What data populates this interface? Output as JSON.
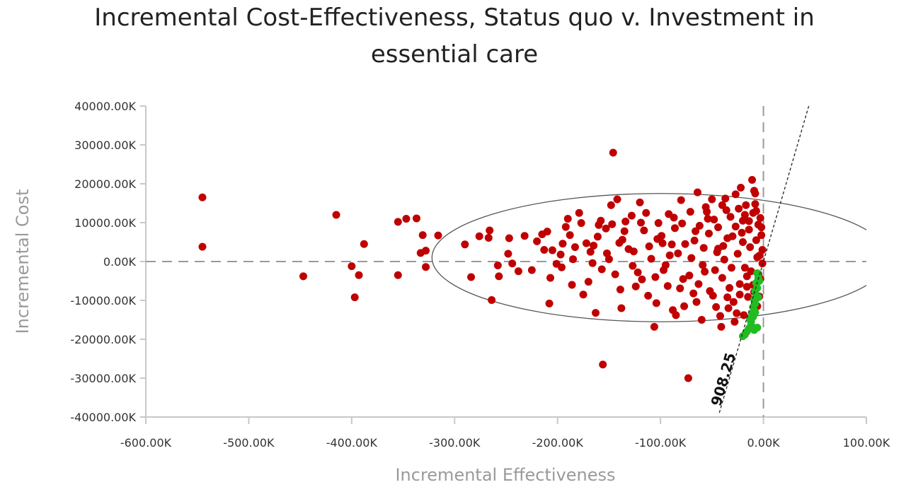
{
  "chart_data": {
    "type": "scatter",
    "title_lines": [
      "Incremental Cost-Effectiveness, Status quo v. Investment in",
      "essential care"
    ],
    "xlabel": "Incremental Effectiveness",
    "ylabel": "Incremental Cost",
    "x_unit": "K",
    "y_unit": "K",
    "xlim": [
      -600,
      100
    ],
    "ylim": [
      -40000,
      40000
    ],
    "x_ticks": [
      -600,
      -500,
      -400,
      -300,
      -200,
      -100,
      0,
      100
    ],
    "y_ticks": [
      -40000,
      -30000,
      -20000,
      -10000,
      0,
      10000,
      20000,
      30000,
      40000
    ],
    "x_tick_labels": [
      "-600.00K",
      "-500.00K",
      "-400.00K",
      "-300.00K",
      "-200.00K",
      "-100.00K",
      "0.00K",
      "100.00K"
    ],
    "y_tick_labels": [
      "-40000.00K",
      "-30000.00K",
      "-20000.00K",
      "-10000.00K",
      "0.00K",
      "10000.00K",
      "20000.00K",
      "30000.00K",
      "40000.00K"
    ],
    "wtp_label": "908.25",
    "wtp_slope": 908.25,
    "ellipse": {
      "center": [
        -100,
        1000
      ],
      "radius_x": 222,
      "radius_y": 16500
    },
    "colors": {
      "dominated": "#c00000",
      "cost_effective": "#22bb22",
      "ellipse": "#555555",
      "wtp_line": "#222222",
      "origin_lines": "#999999"
    },
    "series": [
      {
        "points": [
          [
            -545,
            16500
          ],
          [
            -545,
            3800
          ],
          [
            -447,
            -3800
          ],
          [
            -415,
            12000
          ],
          [
            -400,
            -1200
          ],
          [
            -397,
            -9200
          ],
          [
            -393,
            -3500
          ],
          [
            -388,
            4500
          ],
          [
            -355,
            10200
          ],
          [
            -347,
            11000
          ],
          [
            -337,
            11100
          ],
          [
            -331,
            6800
          ],
          [
            -333,
            2200
          ],
          [
            -328,
            2800
          ],
          [
            -328,
            -1400
          ],
          [
            -355,
            -3500
          ],
          [
            -316,
            6700
          ],
          [
            -290,
            4400
          ],
          [
            -284,
            -4000
          ],
          [
            -276,
            6500
          ],
          [
            -266,
            8000
          ],
          [
            -267,
            6100
          ],
          [
            -264,
            -9900
          ],
          [
            -257,
            -3800
          ],
          [
            -258,
            -1000
          ],
          [
            -247,
            6000
          ],
          [
            -248,
            2000
          ],
          [
            -244,
            -500
          ],
          [
            -238,
            -2500
          ],
          [
            -232,
            6600
          ],
          [
            -225,
            -2200
          ],
          [
            -213,
            3000
          ],
          [
            -210,
            7700
          ],
          [
            -207,
            -4200
          ],
          [
            -208,
            -10800
          ],
          [
            -197,
            1800
          ],
          [
            -196,
            -1500
          ],
          [
            -190,
            11000
          ],
          [
            -188,
            6800
          ],
          [
            -186,
            -6000
          ],
          [
            -179,
            12500
          ],
          [
            -172,
            4700
          ],
          [
            -168,
            2500
          ],
          [
            -166,
            -400
          ],
          [
            -163,
            -13200
          ],
          [
            -158,
            10500
          ],
          [
            -157,
            -2000
          ],
          [
            -156,
            -26500
          ],
          [
            -153,
            8500
          ],
          [
            -146,
            28000
          ],
          [
            -148,
            14500
          ],
          [
            -142,
            16000
          ],
          [
            -140,
            4800
          ],
          [
            -139,
            -7200
          ],
          [
            -138,
            -12000
          ],
          [
            -135,
            7800
          ],
          [
            -128,
            11800
          ],
          [
            -126,
            2600
          ],
          [
            -122,
            -2800
          ],
          [
            -114,
            12500
          ],
          [
            -112,
            -8800
          ],
          [
            -106,
            -16800
          ],
          [
            -104,
            -10700
          ],
          [
            -103,
            5800
          ],
          [
            -97,
            -2200
          ],
          [
            -92,
            12200
          ],
          [
            -86,
            8600
          ],
          [
            -88,
            -12500
          ],
          [
            -80,
            15800
          ],
          [
            -78,
            -4500
          ],
          [
            -77,
            -11500
          ],
          [
            -73,
            -30000
          ],
          [
            -71,
            12800
          ],
          [
            -68,
            -8200
          ],
          [
            -64,
            17800
          ],
          [
            -62,
            9200
          ],
          [
            -60,
            -15000
          ],
          [
            -58,
            3500
          ],
          [
            -55,
            12800
          ],
          [
            -52,
            -7600
          ],
          [
            -50,
            16000
          ],
          [
            -47,
            -2200
          ],
          [
            -44,
            8800
          ],
          [
            -42,
            -14000
          ],
          [
            -41,
            -16800
          ],
          [
            -40,
            14500
          ],
          [
            -39,
            4000
          ],
          [
            -36,
            13200
          ],
          [
            -35,
            -9200
          ],
          [
            -34,
            -12000
          ],
          [
            -32,
            11500
          ],
          [
            -30,
            6500
          ],
          [
            -28,
            -15500
          ],
          [
            -27,
            17300
          ],
          [
            -25,
            2000
          ],
          [
            -23,
            -5800
          ],
          [
            -22,
            19000
          ],
          [
            -20,
            10500
          ],
          [
            -19,
            -13800
          ],
          [
            -17,
            14500
          ],
          [
            -16,
            -6500
          ],
          [
            -14,
            8200
          ],
          [
            -12,
            -2500
          ],
          [
            -10,
            12500
          ],
          [
            -9,
            -7800
          ],
          [
            -8,
            17500
          ],
          [
            -7,
            5500
          ],
          [
            -6,
            -11500
          ],
          [
            -5,
            9500
          ],
          [
            -4,
            1500
          ],
          [
            -3,
            -4500
          ],
          [
            -2,
            6800
          ],
          [
            -11,
            21000
          ],
          [
            -9,
            18200
          ],
          [
            -120,
            15200
          ],
          [
            -131,
            3200
          ],
          [
            -118,
            -4600
          ],
          [
            -150,
            600
          ],
          [
            -175,
            -8500
          ],
          [
            -109,
            700
          ],
          [
            -99,
            6600
          ],
          [
            -93,
            -6300
          ],
          [
            -83,
            2100
          ],
          [
            -67,
            5400
          ],
          [
            -57,
            -2600
          ],
          [
            -48,
            10800
          ],
          [
            -38,
            500
          ],
          [
            -29,
            -10400
          ],
          [
            -24,
            13600
          ],
          [
            -15,
            -9100
          ],
          [
            -13,
            3700
          ],
          [
            -6,
            1100
          ],
          [
            -3,
            11200
          ],
          [
            -18,
            -1600
          ],
          [
            -21,
            7400
          ],
          [
            -33,
            -6800
          ],
          [
            -45,
            2400
          ],
          [
            -53,
            7200
          ],
          [
            -63,
            -5800
          ],
          [
            -70,
            900
          ],
          [
            -79,
            9800
          ],
          [
            -89,
            4400
          ],
          [
            -95,
            -900
          ],
          [
            -102,
            9900
          ],
          [
            -116,
            8000
          ],
          [
            -127,
            -1100
          ],
          [
            -134,
            10300
          ],
          [
            -144,
            -3300
          ],
          [
            -161,
            6400
          ],
          [
            -170,
            -5200
          ],
          [
            -183,
            3700
          ],
          [
            -192,
            8900
          ],
          [
            -201,
            -600
          ],
          [
            -220,
            5200
          ],
          [
            -160,
            9400
          ],
          [
            -85,
            -13800
          ],
          [
            -65,
            -10400
          ],
          [
            -56,
            14000
          ],
          [
            -46,
            -11700
          ],
          [
            -37,
            16200
          ],
          [
            -26,
            -13300
          ],
          [
            -18,
            12000
          ],
          [
            -12,
            -14600
          ],
          [
            -8,
            14800
          ],
          [
            -4,
            -9000
          ],
          [
            -1,
            3000
          ],
          [
            -1,
            -500
          ],
          [
            -2,
            8800
          ],
          [
            -5,
            -3200
          ],
          [
            -7,
            13000
          ],
          [
            -10,
            -6000
          ],
          [
            -14,
            10400
          ],
          [
            -16,
            -3800
          ],
          [
            -20,
            5000
          ],
          [
            -23,
            -8500
          ],
          [
            -27,
            9000
          ],
          [
            -31,
            -1600
          ],
          [
            -35,
            6000
          ],
          [
            -40,
            -4200
          ],
          [
            -44,
            3300
          ],
          [
            -49,
            -8800
          ],
          [
            -54,
            11000
          ],
          [
            -59,
            -900
          ],
          [
            -66,
            7800
          ],
          [
            -72,
            -3600
          ],
          [
            -76,
            4500
          ],
          [
            -81,
            -6900
          ],
          [
            -87,
            11300
          ],
          [
            -91,
            1600
          ],
          [
            -98,
            4700
          ],
          [
            -105,
            -4000
          ],
          [
            -111,
            3900
          ],
          [
            -119,
            10000
          ],
          [
            -124,
            -6400
          ],
          [
            -137,
            5600
          ],
          [
            -147,
            9600
          ],
          [
            -152,
            2100
          ],
          [
            -165,
            4100
          ],
          [
            -177,
            9900
          ],
          [
            -185,
            600
          ],
          [
            -195,
            4600
          ],
          [
            -205,
            2900
          ],
          [
            -215,
            7000
          ]
        ]
      },
      {
        "points": [
          [
            -6,
            -3000
          ],
          [
            -5,
            -4200
          ],
          [
            -7,
            -5500
          ],
          [
            -6,
            -6800
          ],
          [
            -8,
            -7600
          ],
          [
            -7,
            -8800
          ],
          [
            -9,
            -9800
          ],
          [
            -8,
            -10800
          ],
          [
            -10,
            -11700
          ],
          [
            -9,
            -12600
          ],
          [
            -11,
            -13400
          ],
          [
            -10,
            -14200
          ],
          [
            -13,
            -14800
          ],
          [
            -12,
            -15400
          ],
          [
            -12,
            -16400
          ],
          [
            -14,
            -17200
          ],
          [
            -16,
            -18000
          ],
          [
            -18,
            -18800
          ],
          [
            -20,
            -19200
          ],
          [
            -6,
            -17000
          ],
          [
            -9,
            -17600
          ],
          [
            -4,
            -5000
          ],
          [
            -5,
            -9200
          ],
          [
            -8,
            -13100
          ]
        ]
      }
    ]
  }
}
